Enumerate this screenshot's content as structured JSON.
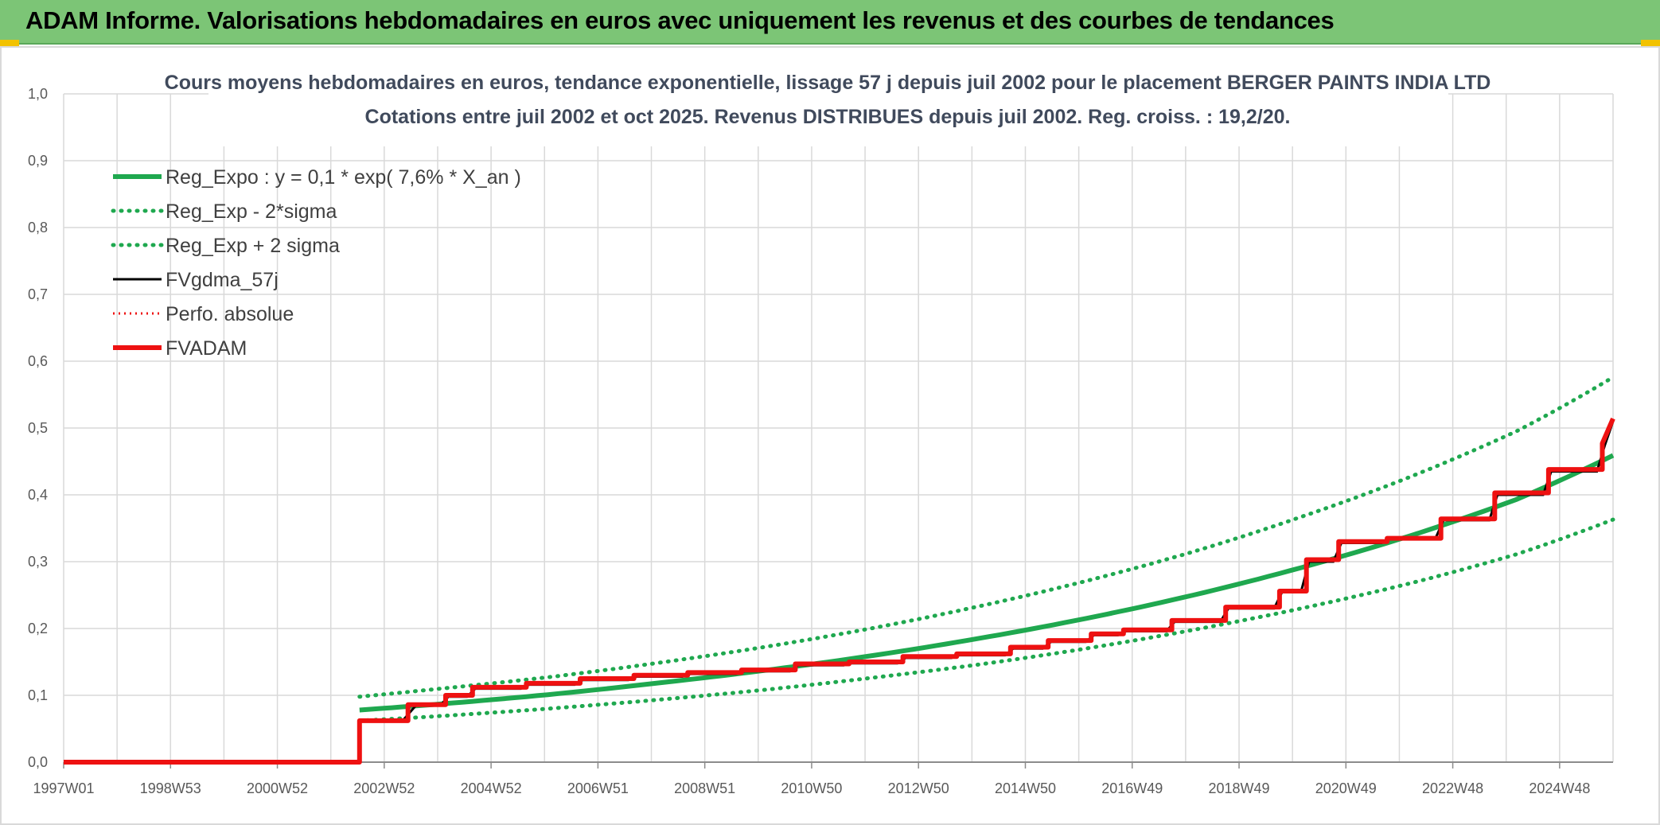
{
  "header": {
    "title": "ADAM Informe. Valorisations hebdomadaires en euros avec uniquement les revenus et des courbes de tendances"
  },
  "colors": {
    "banner": "#7cc576",
    "reg_green": "#1fa84f",
    "adam_red": "#ee1111",
    "gdma_black": "#000000",
    "grid": "#d9d9d9"
  },
  "chart_data": {
    "type": "line",
    "title": "Cours moyens hebdomadaires en euros, tendance exponentielle, lissage 57 j depuis juil 2002 pour le placement BERGER PAINTS INDIA LTD",
    "subtitle": "Cotations entre juil 2002 et oct 2025. Revenus DISTRIBUES depuis juil 2002. Reg. croiss. : 19,2/20.",
    "xlabel": "",
    "ylabel": "",
    "x_ticks": [
      "1997W01",
      "1998W53",
      "2000W52",
      "2002W52",
      "2004W52",
      "2006W51",
      "2008W51",
      "2010W50",
      "2012W50",
      "2014W50",
      "2016W49",
      "2018W49",
      "2020W49",
      "2022W48",
      "2024W48"
    ],
    "y_ticks": [
      "0,0",
      "0,1",
      "0,2",
      "0,3",
      "0,4",
      "0,5",
      "0,6",
      "0,7",
      "0,8",
      "0,9",
      "1,0"
    ],
    "xlim": [
      1997.0,
      2025.8
    ],
    "ylim": [
      0,
      1.0
    ],
    "grid": true,
    "legend_position": "top-left",
    "series": [
      {
        "name": "Reg_Expo : y = 0,1 * exp( 7,6% *  X_an )",
        "style": "solid-green-thick",
        "color": "#1fa84f",
        "x": [
          2002.5,
          2004,
          2006,
          2008,
          2010,
          2012,
          2014,
          2016,
          2018,
          2020,
          2022,
          2024,
          2025.8
        ],
        "y": [
          0.078,
          0.087,
          0.101,
          0.118,
          0.137,
          0.159,
          0.185,
          0.215,
          0.25,
          0.291,
          0.338,
          0.393,
          0.459
        ]
      },
      {
        "name": "Reg_Exp - 2*sigma",
        "style": "dotted-green",
        "color": "#1fa84f",
        "x": [
          2002.5,
          2004,
          2006,
          2008,
          2010,
          2012,
          2014,
          2016,
          2018,
          2020,
          2022,
          2024,
          2025.8
        ],
        "y": [
          0.062,
          0.069,
          0.08,
          0.093,
          0.108,
          0.126,
          0.146,
          0.17,
          0.198,
          0.23,
          0.267,
          0.311,
          0.363
        ]
      },
      {
        "name": "Reg_Exp + 2 sigma",
        "style": "dotted-green",
        "color": "#1fa84f",
        "x": [
          2002.5,
          2004,
          2006,
          2008,
          2010,
          2012,
          2014,
          2016,
          2018,
          2020,
          2022,
          2024,
          2025.8
        ],
        "y": [
          0.098,
          0.11,
          0.127,
          0.148,
          0.172,
          0.2,
          0.233,
          0.271,
          0.315,
          0.367,
          0.426,
          0.495,
          0.576
        ]
      },
      {
        "name": "FVgdma_57j",
        "style": "solid-black",
        "color": "#000000",
        "x": [
          1997.0,
          2002.5,
          2002.5,
          2003.3,
          2003.55,
          2004.0,
          2004.15,
          2004.5,
          2004.65,
          2005.5,
          2005.65,
          2006.5,
          2006.65,
          2007.5,
          2007.65,
          2008.5,
          2008.65,
          2009.5,
          2009.65,
          2010.5,
          2010.65,
          2011.5,
          2011.65,
          2012.5,
          2012.65,
          2013.5,
          2013.65,
          2014.5,
          2014.65,
          2015.2,
          2015.35,
          2016.0,
          2016.15,
          2016.6,
          2016.75,
          2017.5,
          2017.65,
          2018.5,
          2018.65,
          2019.5,
          2019.65,
          2020.0,
          2020.15,
          2020.6,
          2020.75,
          2021.5,
          2021.65,
          2022.5,
          2022.65,
          2023.5,
          2023.65,
          2024.5,
          2024.65,
          2025.5,
          2025.65,
          2025.8
        ],
        "y": [
          0.0,
          0.0,
          0.062,
          0.062,
          0.085,
          0.085,
          0.098,
          0.098,
          0.11,
          0.11,
          0.116,
          0.116,
          0.123,
          0.123,
          0.128,
          0.128,
          0.132,
          0.132,
          0.136,
          0.136,
          0.145,
          0.145,
          0.148,
          0.148,
          0.156,
          0.156,
          0.16,
          0.16,
          0.17,
          0.17,
          0.18,
          0.18,
          0.19,
          0.19,
          0.196,
          0.196,
          0.21,
          0.21,
          0.23,
          0.23,
          0.255,
          0.255,
          0.3,
          0.3,
          0.328,
          0.328,
          0.335,
          0.335,
          0.362,
          0.362,
          0.4,
          0.4,
          0.435,
          0.435,
          0.475,
          0.51
        ]
      },
      {
        "name": "Perfo. absolue",
        "style": "dotted-red",
        "color": "#ee1111",
        "x": [
          1997.0,
          2002.5,
          2002.5,
          2003.4,
          2003.4,
          2004.1,
          2004.1,
          2004.6,
          2004.6,
          2005.6,
          2005.6,
          2006.6,
          2006.6,
          2007.6,
          2007.6,
          2008.6,
          2008.6,
          2009.6,
          2009.6,
          2010.6,
          2010.6,
          2011.6,
          2011.6,
          2012.6,
          2012.6,
          2013.6,
          2013.6,
          2014.6,
          2014.6,
          2015.3,
          2015.3,
          2016.1,
          2016.1,
          2016.7,
          2016.7,
          2017.6,
          2017.6,
          2018.6,
          2018.6,
          2019.6,
          2019.6,
          2020.1,
          2020.1,
          2020.7,
          2020.7,
          2021.6,
          2021.6,
          2022.6,
          2022.6,
          2023.6,
          2023.6,
          2024.6,
          2024.6,
          2025.6,
          2025.6,
          2025.8
        ],
        "y": [
          0.0,
          0.0,
          0.062,
          0.062,
          0.086,
          0.086,
          0.1,
          0.1,
          0.112,
          0.112,
          0.118,
          0.118,
          0.125,
          0.125,
          0.13,
          0.13,
          0.134,
          0.134,
          0.138,
          0.138,
          0.147,
          0.147,
          0.15,
          0.15,
          0.158,
          0.158,
          0.162,
          0.162,
          0.172,
          0.172,
          0.182,
          0.182,
          0.192,
          0.192,
          0.198,
          0.198,
          0.212,
          0.212,
          0.232,
          0.232,
          0.256,
          0.256,
          0.303,
          0.303,
          0.33,
          0.33,
          0.335,
          0.335,
          0.364,
          0.364,
          0.403,
          0.403,
          0.438,
          0.438,
          0.477,
          0.514
        ]
      },
      {
        "name": "FVADAM",
        "style": "solid-red-thick",
        "color": "#ee1111",
        "x": [
          1997.0,
          2002.5,
          2002.5,
          2003.4,
          2003.4,
          2004.1,
          2004.1,
          2004.6,
          2004.6,
          2005.6,
          2005.6,
          2006.6,
          2006.6,
          2007.6,
          2007.6,
          2008.6,
          2008.6,
          2009.6,
          2009.6,
          2010.6,
          2010.6,
          2011.6,
          2011.6,
          2012.6,
          2012.6,
          2013.6,
          2013.6,
          2014.6,
          2014.6,
          2015.3,
          2015.3,
          2016.1,
          2016.1,
          2016.7,
          2016.7,
          2017.6,
          2017.6,
          2018.6,
          2018.6,
          2019.6,
          2019.6,
          2020.1,
          2020.1,
          2020.7,
          2020.7,
          2021.6,
          2021.6,
          2022.6,
          2022.6,
          2023.6,
          2023.6,
          2024.6,
          2024.6,
          2025.6,
          2025.6,
          2025.8
        ],
        "y": [
          0.0,
          0.0,
          0.062,
          0.062,
          0.086,
          0.086,
          0.1,
          0.1,
          0.112,
          0.112,
          0.118,
          0.118,
          0.125,
          0.125,
          0.13,
          0.13,
          0.134,
          0.134,
          0.138,
          0.138,
          0.147,
          0.147,
          0.15,
          0.15,
          0.158,
          0.158,
          0.162,
          0.162,
          0.172,
          0.172,
          0.182,
          0.182,
          0.192,
          0.192,
          0.198,
          0.198,
          0.212,
          0.212,
          0.232,
          0.232,
          0.256,
          0.256,
          0.303,
          0.303,
          0.33,
          0.33,
          0.335,
          0.335,
          0.364,
          0.364,
          0.403,
          0.403,
          0.438,
          0.438,
          0.477,
          0.514
        ]
      }
    ]
  }
}
